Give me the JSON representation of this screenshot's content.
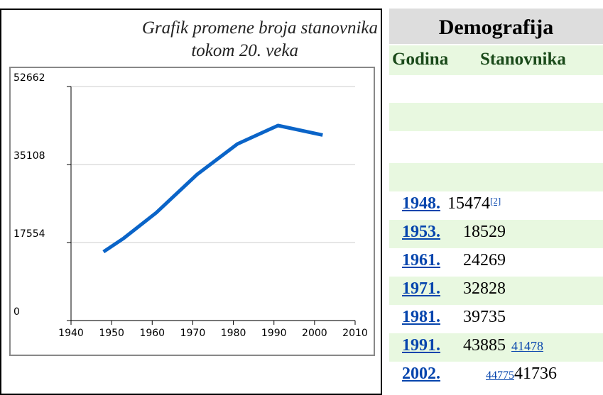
{
  "caption": [
    "Grafik promene broja stanovnika",
    "tokom 20. veka"
  ],
  "chart_data": {
    "type": "line",
    "x": [
      1948,
      1953,
      1961,
      1971,
      1981,
      1991,
      2002
    ],
    "series": [
      {
        "color": "#0a64c8",
        "values": [
          15474,
          18529,
          24269,
          32828,
          39735,
          43885,
          41736
        ]
      }
    ],
    "xlim": [
      1940,
      2010
    ],
    "xticks": [
      1940,
      1950,
      1960,
      1970,
      1980,
      1990,
      2000,
      2010
    ],
    "ylim": [
      0,
      52662
    ],
    "yticks": [
      0,
      17554,
      35108,
      52662
    ],
    "grid": true
  },
  "table": {
    "title": "Demografija",
    "headers": [
      "Godina",
      "Stanovnika"
    ],
    "rows": [
      {
        "year": "1948.",
        "population": "15474",
        "ref": "[2]"
      },
      {
        "year": "1953.",
        "population": "18529"
      },
      {
        "year": "1961.",
        "population": "24269"
      },
      {
        "year": "1971.",
        "population": "32828"
      },
      {
        "year": "1981.",
        "population": "39735"
      },
      {
        "year": "1991.",
        "population": "43885",
        "link": "41478"
      },
      {
        "year": "2002.",
        "link": "44775",
        "population": "41736"
      }
    ]
  }
}
